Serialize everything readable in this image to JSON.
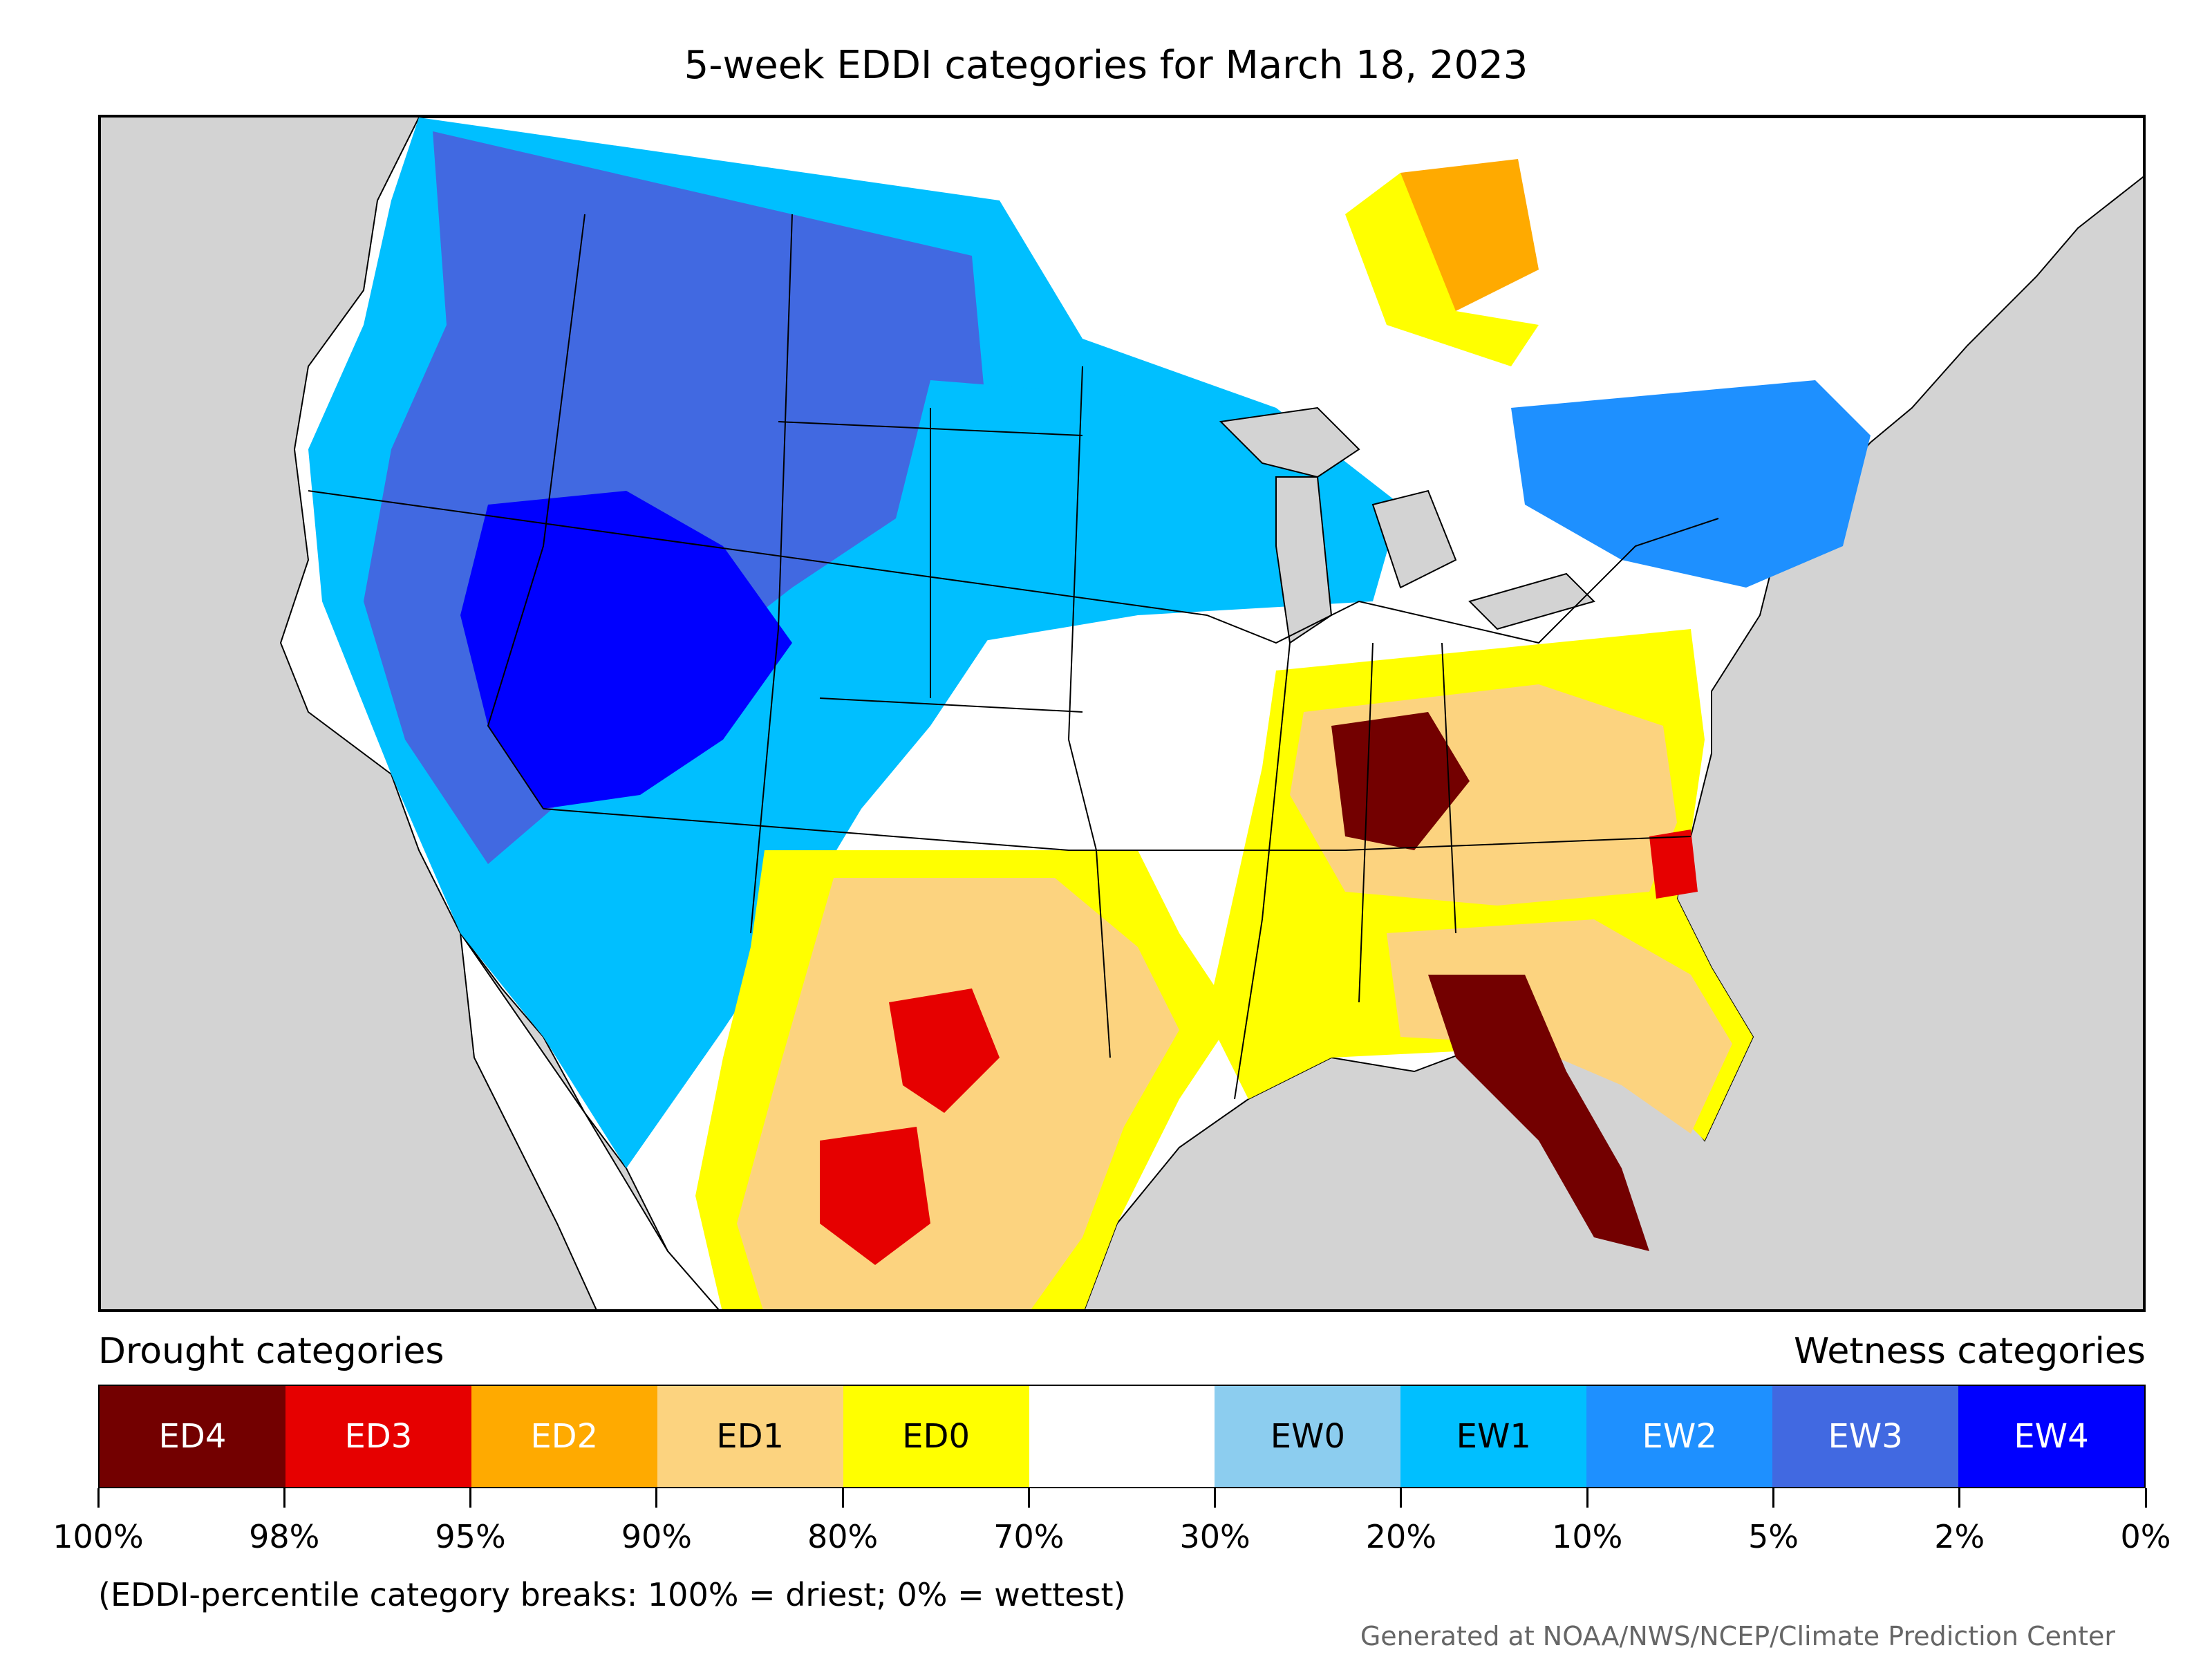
{
  "title": "5-week EDDI categories for March 18, 2023",
  "legend": {
    "drought_label": "Drought categories",
    "wetness_label": "Wetness categories",
    "categories": [
      {
        "label": "ED4",
        "color": "#730000",
        "text_color": "#ffffff"
      },
      {
        "label": "ED3",
        "color": "#e60000",
        "text_color": "#ffffff"
      },
      {
        "label": "ED2",
        "color": "#ffaa00",
        "text_color": "#ffffff"
      },
      {
        "label": "ED1",
        "color": "#fcd37f",
        "text_color": "#000000"
      },
      {
        "label": "ED0",
        "color": "#ffff00",
        "text_color": "#000000"
      },
      {
        "label": "",
        "color": "#ffffff",
        "text_color": "#000000"
      },
      {
        "label": "EW0",
        "color": "#8ccdef",
        "text_color": "#000000"
      },
      {
        "label": "EW1",
        "color": "#00bfff",
        "text_color": "#000000"
      },
      {
        "label": "EW2",
        "color": "#1e90ff",
        "text_color": "#ffffff"
      },
      {
        "label": "EW3",
        "color": "#4169e1",
        "text_color": "#ffffff"
      },
      {
        "label": "EW4",
        "color": "#0000ff",
        "text_color": "#ffffff"
      }
    ],
    "tick_labels": [
      "100%",
      "98%",
      "95%",
      "90%",
      "80%",
      "70%",
      "30%",
      "20%",
      "10%",
      "5%",
      "2%",
      "0%"
    ]
  },
  "note": "(EDDI-percentile category breaks: 100% = driest; 0% = wettest)",
  "credit": "Generated at NOAA/NWS/NCEP/Climate Prediction Center",
  "colors": {
    "ocean": "#d3d3d3",
    "land": "#ffffff",
    "border": "#000000"
  }
}
